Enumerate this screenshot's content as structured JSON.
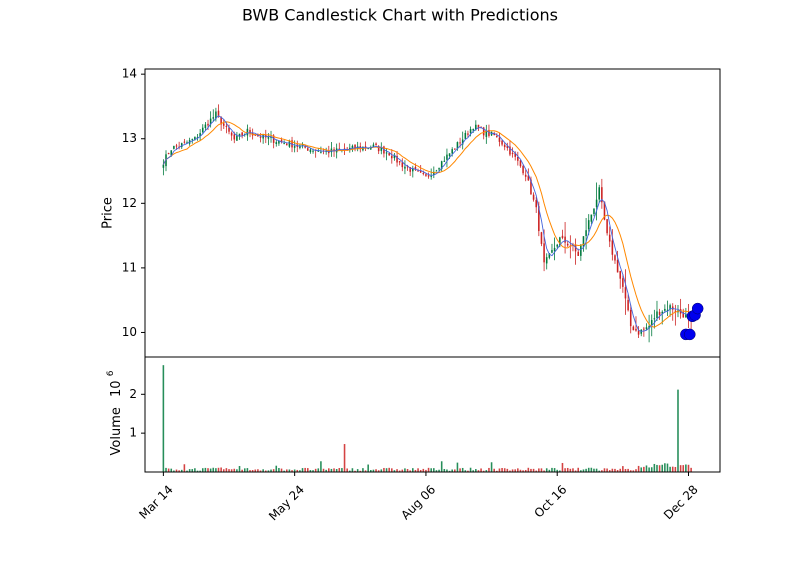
{
  "chart_data": {
    "type": "candlestick",
    "title": "BWB Candlestick Chart with Predictions",
    "price_panel": {
      "ylabel": "Price",
      "ylim": [
        9.62,
        14.08
      ],
      "yticks": [
        10,
        11,
        12,
        13,
        14
      ],
      "xlim": [
        -7,
        212
      ]
    },
    "volume_panel": {
      "ylabel": "Volume",
      "ylabel_exponent": "10",
      "ylabel_exponent_power": "6",
      "ylim": [
        0,
        2.96
      ],
      "yticks": [
        {
          "value": 1,
          "label": "1"
        },
        {
          "value": 2,
          "label": "2"
        }
      ]
    },
    "x_ticks": [
      {
        "index": 0,
        "label": "Mar 14"
      },
      {
        "index": 50,
        "label": "May 24"
      },
      {
        "index": 100,
        "label": "Aug 06"
      },
      {
        "index": 150,
        "label": "Oct 16"
      },
      {
        "index": 200,
        "label": "Dec 28"
      }
    ],
    "close_anchors": [
      [
        0,
        12.65
      ],
      [
        3,
        12.85
      ],
      [
        8,
        12.92
      ],
      [
        12,
        13.0
      ],
      [
        17,
        13.25
      ],
      [
        20,
        13.38
      ],
      [
        23,
        13.2
      ],
      [
        27,
        12.98
      ],
      [
        32,
        13.12
      ],
      [
        36,
        13.05
      ],
      [
        42,
        12.98
      ],
      [
        48,
        12.92
      ],
      [
        55,
        12.85
      ],
      [
        62,
        12.8
      ],
      [
        68,
        12.82
      ],
      [
        74,
        12.86
      ],
      [
        80,
        12.88
      ],
      [
        86,
        12.78
      ],
      [
        90,
        12.62
      ],
      [
        95,
        12.5
      ],
      [
        100,
        12.4
      ],
      [
        104,
        12.55
      ],
      [
        110,
        12.82
      ],
      [
        114,
        13.0
      ],
      [
        118,
        13.2
      ],
      [
        122,
        13.1
      ],
      [
        126,
        13.05
      ],
      [
        130,
        12.9
      ],
      [
        134,
        12.7
      ],
      [
        138,
        12.45
      ],
      [
        142,
        11.9
      ],
      [
        145,
        11.05
      ],
      [
        148,
        11.25
      ],
      [
        151,
        11.45
      ],
      [
        155,
        11.35
      ],
      [
        158,
        11.2
      ],
      [
        161,
        11.6
      ],
      [
        164,
        11.95
      ],
      [
        166,
        12.2
      ],
      [
        169,
        11.5
      ],
      [
        172,
        11.1
      ],
      [
        175,
        10.7
      ],
      [
        178,
        10.1
      ],
      [
        181,
        10.0
      ],
      [
        185,
        10.1
      ],
      [
        188,
        10.3
      ],
      [
        193,
        10.4
      ],
      [
        199,
        10.25
      ],
      [
        201,
        10.15
      ]
    ],
    "volume_spikes": [
      {
        "index": 0,
        "value": 2.75
      },
      {
        "index": 69,
        "value": 0.72
      },
      {
        "index": 196,
        "value": 2.12
      }
    ],
    "predictions": [
      {
        "x": 199,
        "y": 9.97
      },
      {
        "x": 200.5,
        "y": 9.97
      },
      {
        "x": 201.5,
        "y": 10.25
      },
      {
        "x": 202.5,
        "y": 10.27
      },
      {
        "x": 203.5,
        "y": 10.37
      }
    ],
    "colors": {
      "up": "#007a3d",
      "down": "#cc2222",
      "ma_short": "#4466dd",
      "ma_long": "#ff8800",
      "prediction": "#0000ee"
    }
  }
}
